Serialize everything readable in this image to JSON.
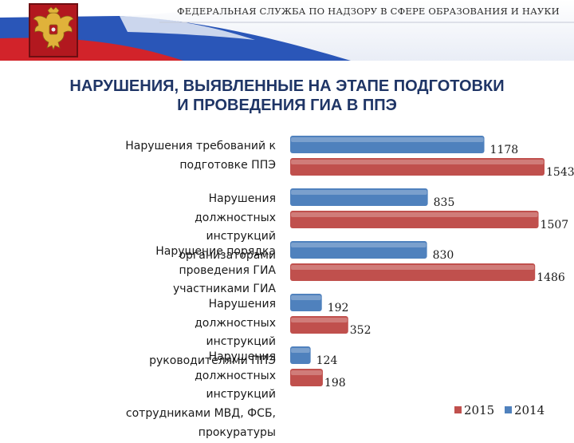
{
  "header": {
    "agency": "ФЕДЕРАЛЬНАЯ СЛУЖБА ПО НАДЗОРУ В СФЕРЕ ОБРАЗОВАНИЯ И НАУКИ"
  },
  "colors": {
    "flag_white": "#ffffff",
    "flag_blue": "#2a56b8",
    "flag_red": "#d2232a",
    "series_2015": "#c0504d",
    "series_2014": "#4f81bd",
    "title": "#1f3566"
  },
  "icons": [
    "russian-coat-of-arms-emblem",
    "russian-flag-stripes"
  ],
  "chart_data": {
    "type": "bar",
    "orientation": "horizontal",
    "title": "НАРУШЕНИЯ, ВЫЯВЛЕННЫЕ НА ЭТАПЕ ПОДГОТОВКИ\nИ ПРОВЕДЕНИЯ ГИА В ППЭ",
    "categories": [
      "Нарушения требований к подготовке ППЭ",
      "Нарушения должностных инструкций организаторами",
      "Нарушение порядка проведения ГИА участниками ГИА",
      "Нарушения должностных инструкций руководителями ППЭ",
      "Нарушения должностных инструкций сотрудниками МВД, ФСБ, прокуратуры"
    ],
    "series": [
      {
        "name": "2014",
        "color": "#4f81bd",
        "values": [
          1178,
          835,
          830,
          192,
          124
        ]
      },
      {
        "name": "2015",
        "color": "#c0504d",
        "values": [
          1543,
          1507,
          1486,
          352,
          198
        ]
      }
    ],
    "legend": [
      "2015",
      "2014"
    ],
    "legend_position": "bottom-right",
    "xlim": [
      0,
      1543
    ],
    "grid": false,
    "axis_visible": false
  }
}
